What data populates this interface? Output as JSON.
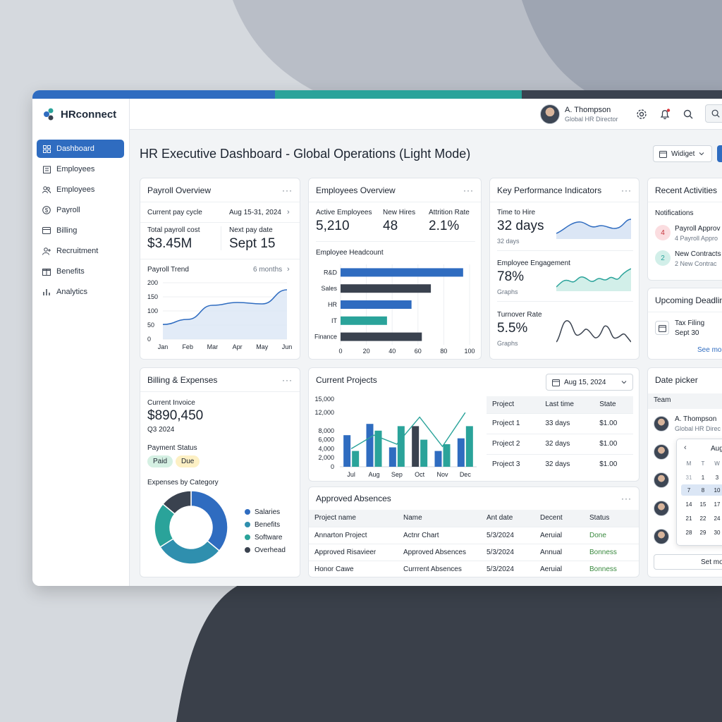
{
  "colors": {
    "blue": "#2f6cc0",
    "teal": "#2aa39a",
    "dark": "#3a424f",
    "accent_light": "#dbe6f5",
    "paid_bg": "#d5f0e3",
    "due_bg": "#fdf0c4",
    "green_text": "#3a8a3f"
  },
  "app": {
    "name": "HRconnect"
  },
  "sidebar": {
    "items": [
      {
        "label": "Dashboard",
        "icon": "grid-icon"
      },
      {
        "label": "Employees",
        "icon": "building-icon"
      },
      {
        "label": "Employees",
        "icon": "people-icon"
      },
      {
        "label": "Payroll",
        "icon": "dollar-icon"
      },
      {
        "label": "Billing",
        "icon": "card-icon"
      },
      {
        "label": "Recruitment",
        "icon": "recruit-icon"
      },
      {
        "label": "Benefits",
        "icon": "gift-icon"
      },
      {
        "label": "Analytics",
        "icon": "bars-icon"
      }
    ]
  },
  "user": {
    "name": "A. Thompson",
    "role": "Global HR Director"
  },
  "page": {
    "title": "HR Executive Dashboard - Global Operations (Light Mode)",
    "widget_label": "Widiget"
  },
  "payroll": {
    "title": "Payroll Overview",
    "cycle_label": "Current pay cycle",
    "cycle_value": "Aug 15-31, 2024",
    "total_label": "Total payroll cost",
    "total_value": "$3.45M",
    "next_label": "Next pay date",
    "next_value": "Sept 15",
    "trend_label": "Payroll Trend",
    "trend_range": "6 months"
  },
  "employees": {
    "title": "Employees Overview",
    "active_label": "Active Employees",
    "active_value": "5,210",
    "hires_label": "New Hires",
    "hires_value": "48",
    "attrition_label": "Attrition Rate",
    "attrition_value": "2.1%",
    "headcount_label": "Employee Headcount"
  },
  "kpi": {
    "title": "Key Performance Indicators",
    "items": [
      {
        "label": "Time to Hire",
        "value": "32 days",
        "sub": "32 days"
      },
      {
        "label": "Employee Engagement",
        "value": "78%",
        "sub": "Graphs"
      },
      {
        "label": "Turnover Rate",
        "value": "5.5%",
        "sub": "Graphs"
      }
    ]
  },
  "activities": {
    "title": "Recent Activities",
    "section": "Notifications",
    "items": [
      {
        "badge": "4",
        "title": "Payroll Approv",
        "sub": "4 Payroll Appro"
      },
      {
        "badge": "2",
        "title": "New Contracts",
        "sub": "2 New Contrac"
      }
    ]
  },
  "deadlines": {
    "title": "Upcoming Deadlin",
    "item_title": "Tax Filing",
    "item_date": "Sept 30",
    "see_more": "See mo"
  },
  "billing": {
    "title": "Billing & Expenses",
    "invoice_label": "Current Invoice",
    "invoice_value": "$890,450",
    "invoice_period": "Q3 2024",
    "status_label": "Payment Status",
    "paid": "Paid",
    "due": "Due",
    "expenses_label": "Expenses by Category"
  },
  "projects": {
    "title": "Current Projects",
    "date_value": "Aug 15, 2024",
    "columns": [
      "Project",
      "Last time",
      "State"
    ],
    "rows": [
      [
        "Project 1",
        "33 days",
        "$1.00"
      ],
      [
        "Project 2",
        "32 days",
        "$1.00"
      ],
      [
        "Project 3",
        "32 days",
        "$1.00"
      ]
    ]
  },
  "absences": {
    "title": "Approved Absences",
    "columns": [
      "Project name",
      "Name",
      "Ant date",
      "Decent",
      "Status"
    ],
    "rows": [
      [
        "Annarton Project",
        "Actnr Chart",
        "5/3/2024",
        "Aeruial",
        "Done"
      ],
      [
        "Approved Risavieer",
        "Approved Absences",
        "5/3/2024",
        "Annual",
        "Bonness"
      ],
      [
        "Honor Cawe",
        "Currrent Absences",
        "5/3/2024",
        "Aeruial",
        "Bonness"
      ]
    ]
  },
  "datepicker": {
    "title": "Date picker",
    "team_label": "Team",
    "member_name": "A. Thompson",
    "member_role": "Global HR Direc",
    "month": "Aug",
    "weekdays": [
      "M",
      "T",
      "W"
    ],
    "weeks": [
      [
        "31",
        "1",
        "3"
      ],
      [
        "7",
        "8",
        "10"
      ],
      [
        "14",
        "15",
        "17"
      ],
      [
        "21",
        "22",
        "24"
      ],
      [
        "28",
        "29",
        "30"
      ]
    ],
    "set_label": "Set mo"
  },
  "chart_data": [
    {
      "type": "area",
      "title": "Payroll Trend",
      "x": [
        "Jan",
        "Feb",
        "Mar",
        "Apr",
        "May",
        "Jun"
      ],
      "series": [
        {
          "values": [
            52,
            70,
            120,
            130,
            125,
            175
          ]
        }
      ],
      "ylim": [
        0,
        200
      ],
      "yticks": [
        0,
        50,
        100,
        150,
        200
      ]
    },
    {
      "type": "bar",
      "orientation": "horizontal",
      "title": "Employee Headcount",
      "categories": [
        "R&D",
        "Sales",
        "HR",
        "IT",
        "Finance"
      ],
      "values": [
        95,
        70,
        55,
        36,
        63
      ],
      "xlim": [
        0,
        100
      ],
      "xticks": [
        0,
        20,
        40,
        60,
        80,
        100
      ]
    },
    {
      "type": "bar",
      "title": "Current Projects",
      "categories": [
        "Jul",
        "Aug",
        "Sep",
        "Oct",
        "Nov",
        "Dec"
      ],
      "series": [
        {
          "values": [
            7000,
            9500,
            4300,
            9000,
            3500,
            6300
          ]
        },
        {
          "values": [
            3500,
            8000,
            9000,
            6000,
            5000,
            9000
          ]
        }
      ],
      "line": [
        4000,
        7000,
        5000,
        11000,
        4500,
        12000
      ],
      "ylim": [
        0,
        15000
      ],
      "yticks": [
        "0",
        "2,000",
        "4,000",
        "6,000",
        "8,000",
        "12,000",
        "15,000"
      ]
    },
    {
      "type": "pie",
      "title": "Expenses by Category",
      "labels": [
        "Salaries",
        "Benefits",
        "Software",
        "Overhead"
      ],
      "values": [
        36,
        30,
        20,
        14
      ]
    }
  ]
}
